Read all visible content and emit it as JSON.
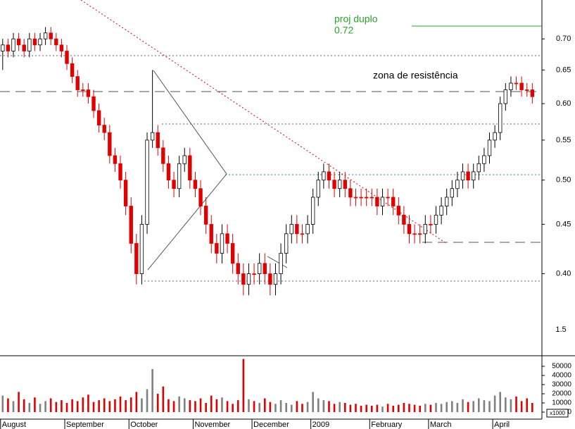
{
  "chart_data": {
    "type": "candlestick",
    "open": [
      0.68,
      0.69,
      0.68,
      0.7,
      0.69,
      0.68,
      0.7,
      0.69,
      0.7,
      0.71,
      0.7,
      0.69,
      0.68,
      0.66,
      0.64,
      0.62,
      0.62,
      0.61,
      0.59,
      0.57,
      0.56,
      0.53,
      0.52,
      0.5,
      0.47,
      0.43,
      0.4,
      0.45,
      0.55,
      0.56,
      0.54,
      0.52,
      0.5,
      0.49,
      0.52,
      0.53,
      0.5,
      0.49,
      0.47,
      0.45,
      0.43,
      0.42,
      0.44,
      0.43,
      0.41,
      0.4,
      0.39,
      0.4,
      0.4,
      0.41,
      0.4,
      0.39,
      0.4,
      0.42,
      0.44,
      0.45,
      0.44,
      0.44,
      0.45,
      0.48,
      0.5,
      0.51,
      0.5,
      0.49,
      0.5,
      0.49,
      0.48,
      0.48,
      0.48,
      0.48,
      0.48,
      0.47,
      0.48,
      0.48,
      0.47,
      0.46,
      0.45,
      0.44,
      0.44,
      0.44,
      0.45,
      0.45,
      0.46,
      0.47,
      0.48,
      0.49,
      0.5,
      0.51,
      0.5,
      0.51,
      0.52,
      0.53,
      0.55,
      0.56,
      0.6,
      0.62,
      0.63,
      0.63,
      0.62,
      0.62
    ],
    "high": [
      0.7,
      0.7,
      0.71,
      0.71,
      0.7,
      0.71,
      0.71,
      0.71,
      0.72,
      0.72,
      0.71,
      0.7,
      0.69,
      0.67,
      0.65,
      0.63,
      0.63,
      0.62,
      0.6,
      0.58,
      0.57,
      0.54,
      0.53,
      0.51,
      0.48,
      0.44,
      0.46,
      0.56,
      0.65,
      0.57,
      0.55,
      0.53,
      0.51,
      0.53,
      0.54,
      0.54,
      0.51,
      0.5,
      0.48,
      0.46,
      0.44,
      0.45,
      0.45,
      0.44,
      0.42,
      0.41,
      0.41,
      0.41,
      0.42,
      0.42,
      0.41,
      0.41,
      0.43,
      0.45,
      0.46,
      0.46,
      0.45,
      0.46,
      0.49,
      0.51,
      0.52,
      0.52,
      0.51,
      0.51,
      0.51,
      0.5,
      0.49,
      0.49,
      0.49,
      0.49,
      0.49,
      0.49,
      0.49,
      0.49,
      0.48,
      0.47,
      0.46,
      0.45,
      0.45,
      0.46,
      0.46,
      0.47,
      0.48,
      0.49,
      0.5,
      0.51,
      0.52,
      0.52,
      0.52,
      0.53,
      0.54,
      0.56,
      0.57,
      0.61,
      0.63,
      0.64,
      0.64,
      0.64,
      0.63,
      0.63
    ],
    "low": [
      0.65,
      0.67,
      0.67,
      0.68,
      0.67,
      0.67,
      0.68,
      0.68,
      0.69,
      0.69,
      0.68,
      0.67,
      0.65,
      0.63,
      0.61,
      0.61,
      0.6,
      0.58,
      0.56,
      0.55,
      0.52,
      0.51,
      0.49,
      0.46,
      0.42,
      0.39,
      0.39,
      0.44,
      0.54,
      0.53,
      0.51,
      0.49,
      0.48,
      0.48,
      0.51,
      0.49,
      0.48,
      0.46,
      0.44,
      0.42,
      0.41,
      0.41,
      0.42,
      0.4,
      0.39,
      0.38,
      0.38,
      0.39,
      0.39,
      0.39,
      0.38,
      0.38,
      0.39,
      0.41,
      0.43,
      0.43,
      0.43,
      0.43,
      0.44,
      0.47,
      0.49,
      0.49,
      0.48,
      0.48,
      0.48,
      0.47,
      0.47,
      0.47,
      0.47,
      0.47,
      0.46,
      0.46,
      0.47,
      0.46,
      0.45,
      0.44,
      0.43,
      0.43,
      0.43,
      0.43,
      0.44,
      0.44,
      0.45,
      0.46,
      0.47,
      0.48,
      0.49,
      0.49,
      0.49,
      0.5,
      0.51,
      0.52,
      0.54,
      0.55,
      0.59,
      0.61,
      0.62,
      0.61,
      0.61,
      0.6
    ],
    "close": [
      0.69,
      0.68,
      0.7,
      0.69,
      0.68,
      0.7,
      0.69,
      0.7,
      0.71,
      0.7,
      0.69,
      0.68,
      0.66,
      0.64,
      0.62,
      0.62,
      0.61,
      0.59,
      0.57,
      0.56,
      0.53,
      0.52,
      0.5,
      0.47,
      0.43,
      0.4,
      0.45,
      0.55,
      0.56,
      0.54,
      0.52,
      0.5,
      0.49,
      0.52,
      0.53,
      0.5,
      0.49,
      0.47,
      0.45,
      0.43,
      0.42,
      0.44,
      0.43,
      0.41,
      0.4,
      0.39,
      0.4,
      0.4,
      0.41,
      0.4,
      0.39,
      0.4,
      0.42,
      0.44,
      0.45,
      0.44,
      0.44,
      0.45,
      0.48,
      0.5,
      0.51,
      0.5,
      0.49,
      0.5,
      0.49,
      0.48,
      0.48,
      0.48,
      0.48,
      0.48,
      0.47,
      0.48,
      0.48,
      0.47,
      0.46,
      0.45,
      0.44,
      0.44,
      0.44,
      0.45,
      0.45,
      0.46,
      0.47,
      0.48,
      0.49,
      0.5,
      0.51,
      0.5,
      0.51,
      0.52,
      0.53,
      0.55,
      0.56,
      0.6,
      0.62,
      0.63,
      0.63,
      0.62,
      0.62,
      0.61
    ],
    "volume": [
      18000,
      15000,
      12000,
      22000,
      14000,
      10000,
      16000,
      9000,
      12000,
      15000,
      11000,
      13000,
      10000,
      14000,
      12000,
      16000,
      19000,
      11000,
      13000,
      15000,
      12000,
      14000,
      17000,
      13000,
      16000,
      22000,
      15000,
      25000,
      47000,
      20000,
      28000,
      14000,
      12000,
      17000,
      15000,
      13000,
      12000,
      15000,
      10000,
      18000,
      14000,
      16000,
      12000,
      9000,
      13000,
      58000,
      14000,
      12000,
      10000,
      15000,
      11000,
      9000,
      13000,
      10000,
      8000,
      12000,
      9000,
      11000,
      22000,
      15000,
      13000,
      12000,
      9000,
      11000,
      10000,
      8000,
      9000,
      7000,
      8000,
      7000,
      8000,
      6000,
      9000,
      7000,
      8000,
      10000,
      9000,
      8000,
      7000,
      9000,
      8000,
      10000,
      9000,
      11000,
      12000,
      10000,
      14000,
      11000,
      12000,
      15000,
      13000,
      12000,
      18000,
      22000,
      16000,
      14000,
      17000,
      12000,
      15000,
      10000
    ],
    "up_color": "#ffffff",
    "down_color": "#e00000",
    "volume_up_color": "#808080",
    "log_scale": true,
    "xlim": [
      -0.5,
      100.8
    ],
    "xticks": [
      {
        "value": 0,
        "label": "August"
      },
      {
        "value": 12,
        "label": "September"
      },
      {
        "value": 24,
        "label": "October"
      },
      {
        "value": 36,
        "label": "November"
      },
      {
        "value": 47,
        "label": "December"
      },
      {
        "value": 58,
        "label": "2009"
      },
      {
        "value": 69,
        "label": "February"
      },
      {
        "value": 80,
        "label": "March"
      },
      {
        "value": 92,
        "label": "April"
      }
    ],
    "ylim": [
      0.329,
      0.768
    ],
    "yticks": [
      {
        "value": 0.4,
        "label": "0.40"
      },
      0.45,
      {
        "value": 0.5,
        "label": "0.50"
      },
      0.55,
      {
        "value": 0.6,
        "label": "0.60"
      },
      0.65,
      {
        "value": 0.7,
        "label": "0.70"
      }
    ],
    "y2lim": [
      0,
      60000
    ],
    "y2ticks": [
      0,
      10000,
      20000,
      30000,
      40000,
      50000
    ],
    "volume_unit": "x1000",
    "axis_note": "1.5",
    "annotations": [
      "proj duplo",
      "0.72",
      "zona de resistência"
    ]
  }
}
